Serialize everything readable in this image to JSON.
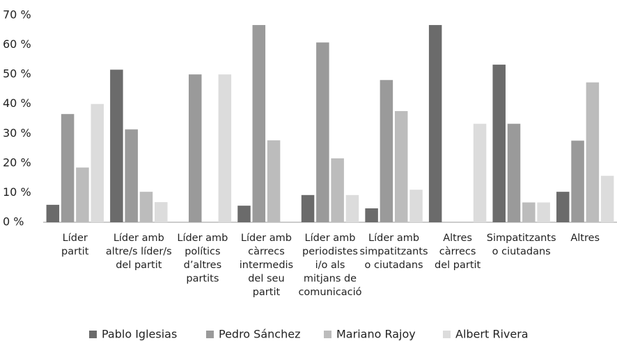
{
  "chart_data": {
    "type": "bar",
    "categories": [
      "Líder\npartit",
      "Líder amb\naltre/s líder/s\ndel partit",
      "Líder amb\npolítics\nd’altres\npartits",
      "Líder amb\ncàrrecs\nintermedis\ndel seu\npartit",
      "Líder amb\nperiodistes\ni/o als\nmitjans de\ncomunicació",
      "Líder amb\nsimpatitzants\no ciutadans",
      "Altres\ncàrrecs\ndel partit",
      "Simpatitzants\no ciutadans",
      "Altres"
    ],
    "series": [
      {
        "name": "Pablo Iglesias",
        "color": "#6b6b6b",
        "values": [
          5.9,
          51.6,
          0,
          5.6,
          9.2,
          4.7,
          66.7,
          53.3,
          10.3
        ]
      },
      {
        "name": "Pedro Sánchez",
        "color": "#9a9a9a",
        "values": [
          36.6,
          31.4,
          50,
          66.7,
          60.8,
          48.1,
          0,
          33.3,
          27.6
        ]
      },
      {
        "name": "Mariano Rajoy",
        "color": "#bcbcbc",
        "values": [
          18.5,
          10.3,
          0,
          27.7,
          21.6,
          37.6,
          0,
          6.7,
          47.3
        ]
      },
      {
        "name": "Albert Rivera",
        "color": "#dcdcdc",
        "values": [
          40,
          6.8,
          50,
          0,
          9.2,
          11,
          33.3,
          6.7,
          15.7
        ]
      }
    ],
    "ylim": [
      0,
      70
    ],
    "yticks": [
      {
        "value": 0,
        "label": "0 %"
      },
      {
        "value": 10,
        "label": "10 %"
      },
      {
        "value": 20,
        "label": "20 %"
      },
      {
        "value": 30,
        "label": "30 %"
      },
      {
        "value": 40,
        "label": "40 %"
      },
      {
        "value": 50,
        "label": "50 %"
      },
      {
        "value": 60,
        "label": "60 %"
      },
      {
        "value": 70,
        "label": "70 %"
      }
    ],
    "grid": false,
    "legend": "bottom"
  }
}
